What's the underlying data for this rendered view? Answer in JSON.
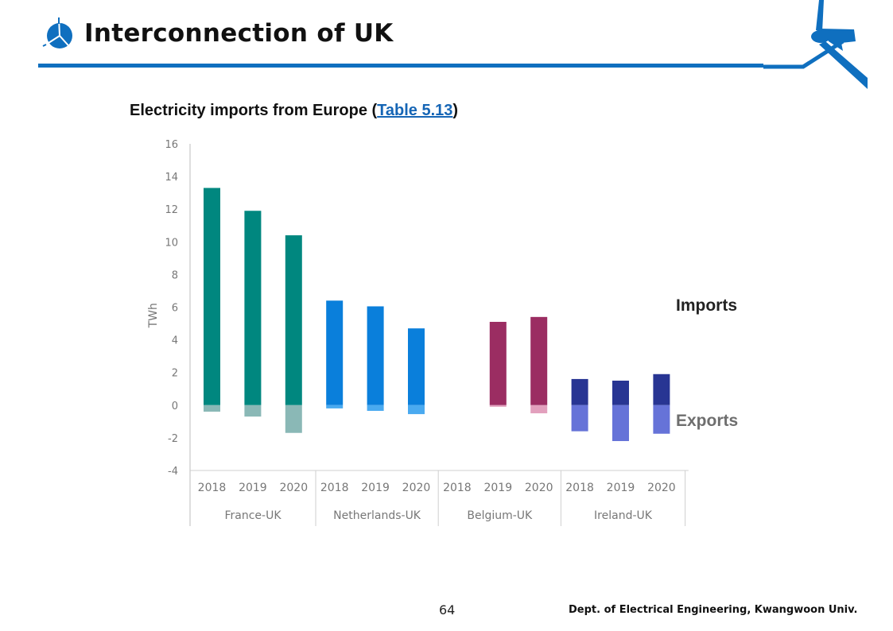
{
  "slide": {
    "title": "Interconnection of UK",
    "page_number": "64",
    "footer": "Dept. of Electrical Engineering, Kwangwoon Univ.",
    "accent_color": "#0f6fbf"
  },
  "chart_data": {
    "type": "bar",
    "title_prefix": "Electricity imports from Europe (",
    "title_link": "Table 5.13",
    "title_suffix": ")",
    "ylabel": "TWh",
    "xlabel": "",
    "ylim": [
      -4,
      16
    ],
    "yticks": [
      16,
      14,
      12,
      10,
      8,
      6,
      4,
      2,
      0,
      -2,
      -4
    ],
    "grid": false,
    "annotations": {
      "imports": "Imports",
      "exports": "Exports"
    },
    "groups": [
      {
        "name": "France-UK",
        "import_color": "#00877f",
        "export_color": "#8ab8b6",
        "years": [
          "2018",
          "2019",
          "2020"
        ],
        "imports": [
          13.3,
          11.9,
          10.4
        ],
        "exports": [
          -0.4,
          -0.7,
          -1.7
        ]
      },
      {
        "name": "Netherlands-UK",
        "import_color": "#0a7fdb",
        "export_color": "#4aaaf0",
        "years": [
          "2018",
          "2019",
          "2020"
        ],
        "imports": [
          6.4,
          6.05,
          4.7
        ],
        "exports": [
          -0.2,
          -0.35,
          -0.55
        ]
      },
      {
        "name": "Belgium-UK",
        "import_color": "#9b2d62",
        "export_color": "#e2a0bd",
        "years": [
          "2018",
          "2019",
          "2020"
        ],
        "imports": [
          null,
          5.1,
          5.4
        ],
        "exports": [
          null,
          -0.1,
          -0.5
        ]
      },
      {
        "name": "Ireland-UK",
        "import_color": "#283593",
        "export_color": "#6673d8",
        "years": [
          "2018",
          "2019",
          "2020"
        ],
        "imports": [
          1.6,
          1.5,
          1.9
        ],
        "exports": [
          -1.6,
          -2.2,
          -1.75
        ]
      }
    ]
  }
}
